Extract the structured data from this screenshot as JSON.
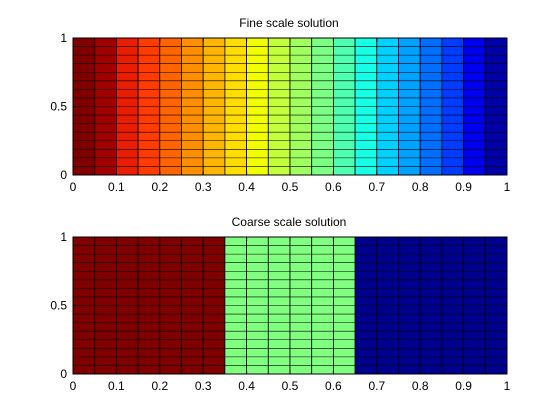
{
  "figure_background": "#ffffff",
  "grid_line_color": "#000000",
  "chart_data": [
    {
      "type": "heatmap",
      "title": "Fine scale solution",
      "xlabel": "",
      "ylabel": "",
      "xlim": [
        0,
        1
      ],
      "ylim": [
        0,
        1
      ],
      "x_ticks": [
        "0",
        "0.1",
        "0.2",
        "0.3",
        "0.4",
        "0.5",
        "0.6",
        "0.7",
        "0.8",
        "0.9",
        "1"
      ],
      "y_ticks": [
        "0",
        "0.5",
        "1"
      ],
      "grid": true,
      "x_edges": [
        0,
        0.05,
        0.1,
        0.15,
        0.2,
        0.25,
        0.3,
        0.35,
        0.4,
        0.45,
        0.5,
        0.55,
        0.6,
        0.65,
        0.7,
        0.75,
        0.8,
        0.85,
        0.9,
        0.95,
        1.0
      ],
      "rows": 16,
      "colormap": "jet",
      "column_colors": [
        "#800000",
        "#a00000",
        "#e91d00",
        "#ff3b00",
        "#ff6400",
        "#ff8e00",
        "#ffb600",
        "#ffdd00",
        "#f2ff00",
        "#c4ff3b",
        "#a0ff5f",
        "#7bff84",
        "#4effb1",
        "#16ffe7",
        "#00d2ff",
        "#00a2ff",
        "#006fff",
        "#003cff",
        "#0000f1",
        "#0000a7"
      ]
    },
    {
      "type": "heatmap",
      "title": "Coarse scale solution",
      "xlabel": "",
      "ylabel": "",
      "xlim": [
        0,
        1
      ],
      "ylim": [
        0,
        1
      ],
      "x_ticks": [
        "0",
        "0.1",
        "0.2",
        "0.3",
        "0.4",
        "0.5",
        "0.6",
        "0.7",
        "0.8",
        "0.9",
        "1"
      ],
      "y_ticks": [
        "0",
        "0.5",
        "1"
      ],
      "grid": true,
      "x_edges": [
        0,
        0.05,
        0.1,
        0.15,
        0.2,
        0.25,
        0.3,
        0.35,
        0.4,
        0.45,
        0.5,
        0.55,
        0.6,
        0.65,
        0.7,
        0.75,
        0.8,
        0.85,
        0.9,
        0.95,
        1.0
      ],
      "rows": 16,
      "colormap": "jet",
      "coarse_blocks": [
        {
          "x_range": [
            0,
            0.35
          ],
          "color": "#800000"
        },
        {
          "x_range": [
            0.35,
            0.65
          ],
          "color": "#80ff80"
        },
        {
          "x_range": [
            0.65,
            1.0
          ],
          "color": "#00008f"
        }
      ]
    }
  ]
}
